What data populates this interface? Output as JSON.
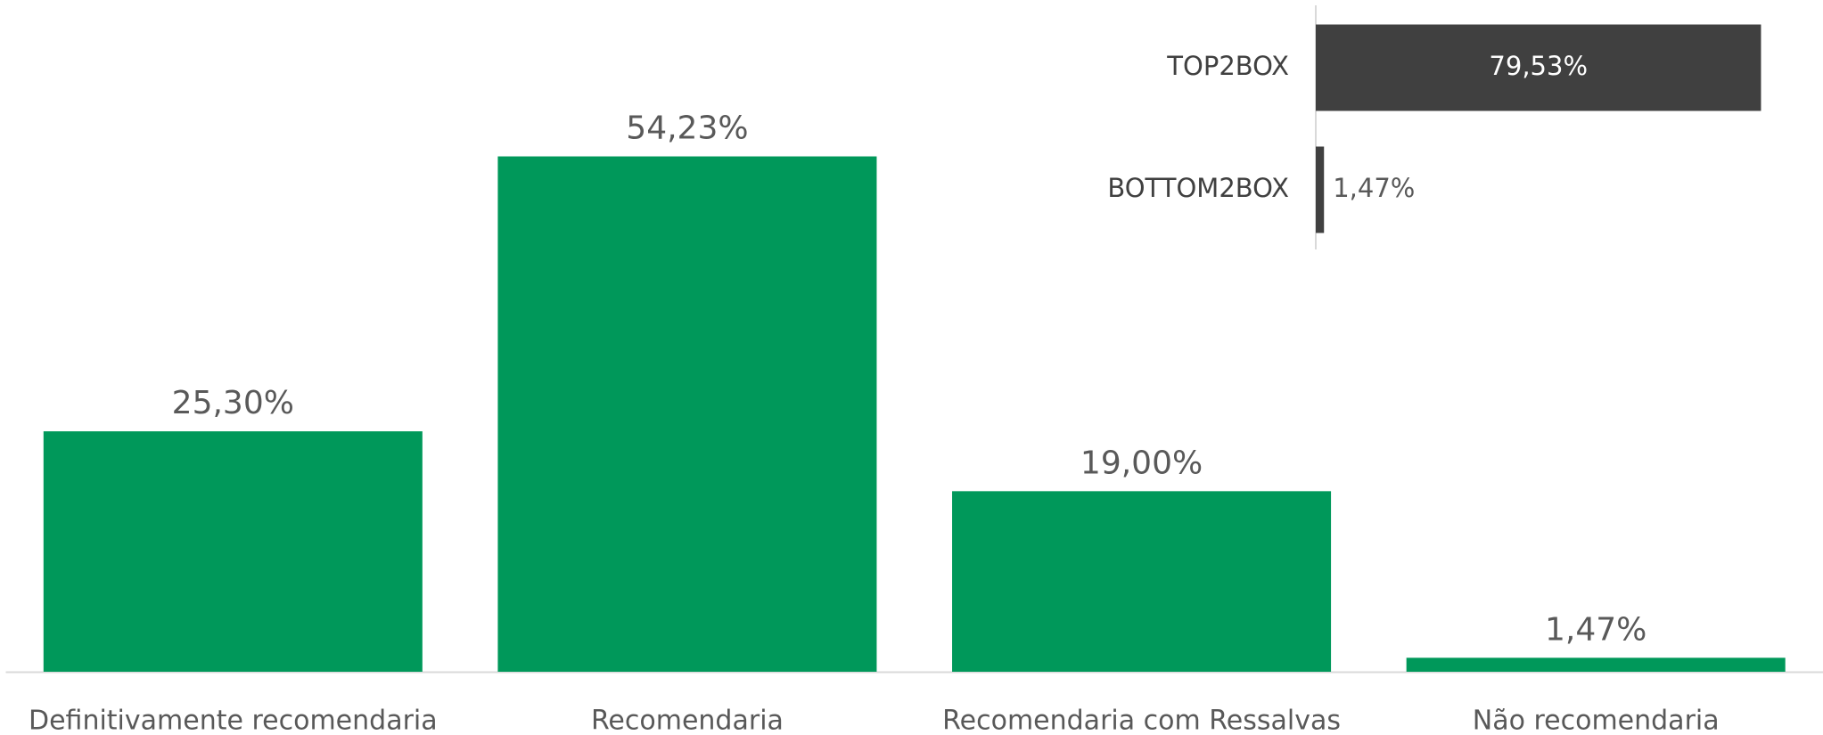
{
  "chart_data": [
    {
      "type": "bar",
      "categories": [
        "Definitivamente recomendaria",
        "Recomendaria",
        "Recomendaria com Ressalvas",
        "Não recomendaria"
      ],
      "values": [
        25.3,
        54.23,
        19.0,
        1.47
      ],
      "value_labels": [
        "25,30%",
        "54,23%",
        "19,00%",
        "1,47%"
      ],
      "color": "#00985a",
      "ylim": [
        0,
        60
      ]
    },
    {
      "type": "hbar",
      "categories": [
        "TOP2BOX",
        "BOTTOM2BOX"
      ],
      "values": [
        79.53,
        1.47
      ],
      "value_labels": [
        "79,53%",
        "1,47%"
      ],
      "color": "#404040",
      "xlim": [
        0,
        85
      ]
    }
  ]
}
